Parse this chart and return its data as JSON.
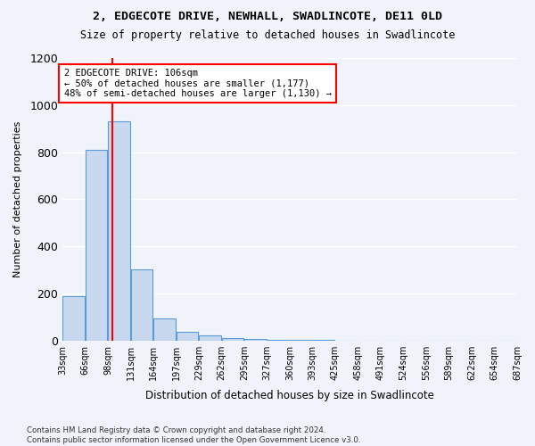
{
  "title": "2, EDGECOTE DRIVE, NEWHALL, SWADLINCOTE, DE11 0LD",
  "subtitle": "Size of property relative to detached houses in Swadlincote",
  "xlabel": "Distribution of detached houses by size in Swadlincote",
  "ylabel": "Number of detached properties",
  "bin_edges": [
    33,
    66,
    99,
    132,
    165,
    198,
    231,
    264,
    297,
    330,
    363,
    396,
    429,
    462,
    495,
    528,
    561,
    594,
    627,
    660,
    693
  ],
  "bin_labels": [
    "33sqm",
    "66sqm",
    "98sqm",
    "131sqm",
    "164sqm",
    "197sqm",
    "229sqm",
    "262sqm",
    "295sqm",
    "327sqm",
    "360sqm",
    "393sqm",
    "425sqm",
    "458sqm",
    "491sqm",
    "524sqm",
    "556sqm",
    "589sqm",
    "622sqm",
    "654sqm",
    "687sqm"
  ],
  "counts": [
    190,
    810,
    930,
    300,
    95,
    35,
    20,
    10,
    5,
    2,
    1,
    1,
    0,
    0,
    0,
    0,
    0,
    0,
    0,
    0
  ],
  "bar_color": "#c8d9ef",
  "bar_edge_color": "#5b9bd5",
  "vline_x": 106,
  "vline_color": "red",
  "annotation_line1": "2 EDGECOTE DRIVE: 106sqm",
  "annotation_line2": "← 50% of detached houses are smaller (1,177)",
  "annotation_line3": "48% of semi-detached houses are larger (1,130) →",
  "annotation_box_color": "white",
  "annotation_box_edge": "red",
  "ylim": [
    0,
    1200
  ],
  "yticks": [
    0,
    200,
    400,
    600,
    800,
    1000,
    1200
  ],
  "footer_line1": "Contains HM Land Registry data © Crown copyright and database right 2024.",
  "footer_line2": "Contains public sector information licensed under the Open Government Licence v3.0.",
  "bg_color": "#f0f4fa",
  "grid_color": "#ffffff"
}
